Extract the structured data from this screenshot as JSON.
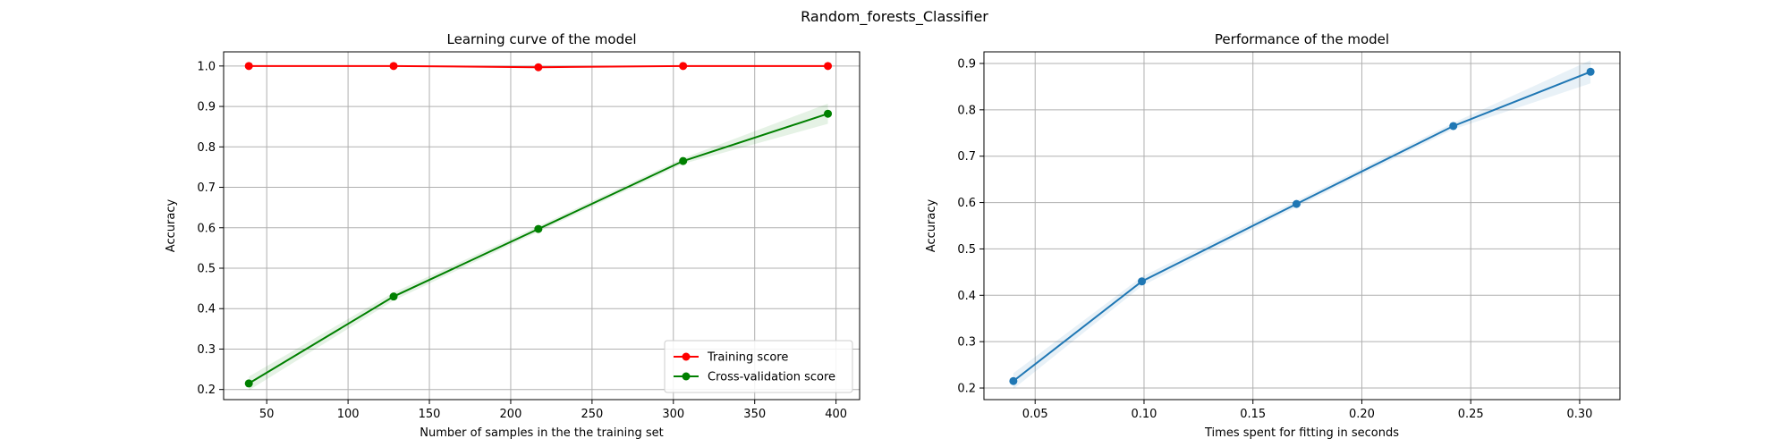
{
  "figure": {
    "suptitle": "Random_forests_Classifier"
  },
  "chart_data": [
    {
      "type": "line",
      "title": "Learning curve of the model",
      "xlabel": "Number of samples in the the training set",
      "ylabel": "Accuracy",
      "xlim": [
        23.5,
        414.5
      ],
      "ylim": [
        0.175,
        1.035
      ],
      "xticks": [
        50,
        100,
        150,
        200,
        250,
        300,
        350,
        400
      ],
      "yticks": [
        0.2,
        0.3,
        0.4,
        0.5,
        0.6,
        0.7,
        0.8,
        0.9,
        1.0
      ],
      "grid": true,
      "legend": "lower-right",
      "x": [
        39,
        128,
        217,
        306,
        395
      ],
      "series": [
        {
          "name": "Training score",
          "color": "#ff0000",
          "values": [
            1.0,
            1.0,
            0.997,
            1.0,
            1.0
          ],
          "band": [
            [
              1.0,
              1.0
            ],
            [
              1.0,
              1.0
            ],
            [
              0.994,
              1.0
            ],
            [
              1.0,
              1.0
            ],
            [
              1.0,
              1.0
            ]
          ]
        },
        {
          "name": "Cross-validation score",
          "color": "#008000",
          "values": [
            0.215,
            0.43,
            0.597,
            0.765,
            0.882
          ],
          "band": [
            [
              0.198,
              0.232
            ],
            [
              0.42,
              0.44
            ],
            [
              0.59,
              0.604
            ],
            [
              0.758,
              0.772
            ],
            [
              0.857,
              0.907
            ]
          ]
        }
      ]
    },
    {
      "type": "line",
      "title": "Performance of the model",
      "xlabel": "Times spent for fitting in seconds",
      "ylabel": "Accuracy",
      "xlim": [
        0.0265,
        0.3185
      ],
      "ylim": [
        0.175,
        0.925
      ],
      "xticks": [
        0.05,
        0.1,
        0.15,
        0.2,
        0.25,
        0.3
      ],
      "yticks": [
        0.2,
        0.3,
        0.4,
        0.5,
        0.6,
        0.7,
        0.8,
        0.9
      ],
      "grid": true,
      "series": [
        {
          "color": "#1f77b4",
          "x": [
            0.04,
            0.099,
            0.17,
            0.242,
            0.305
          ],
          "values": [
            0.215,
            0.43,
            0.597,
            0.765,
            0.882
          ],
          "band": [
            [
              0.198,
              0.232
            ],
            [
              0.42,
              0.44
            ],
            [
              0.59,
              0.604
            ],
            [
              0.758,
              0.772
            ],
            [
              0.857,
              0.907
            ]
          ]
        }
      ]
    }
  ]
}
